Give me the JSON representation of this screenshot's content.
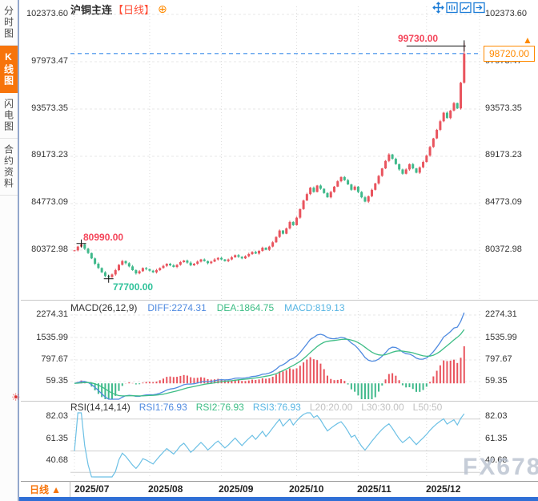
{
  "sidebar": {
    "tabs": [
      {
        "label": "分时图",
        "active": false
      },
      {
        "label": "K线图",
        "active": true
      },
      {
        "label": "闪电图",
        "active": false
      },
      {
        "label": "合约资料",
        "active": false
      }
    ]
  },
  "header": {
    "symbol": "沪铜主连",
    "period_tag": "【日线】",
    "expand_icon": "⊕",
    "toolbar_icons": [
      "crosshair-icon",
      "range-stats-icon",
      "trend-draw-icon",
      "page-forward-icon"
    ]
  },
  "colors": {
    "up": "#e9545e",
    "down": "#3fb98b",
    "diff_line": "#4f8ae0",
    "dea_line": "#3dbd85",
    "rsi_line": "#6cc0e5",
    "dashed_line": "#3b8cea",
    "accent_orange": "#f7740a",
    "annotation_red": "#f4455a",
    "annotation_green": "#2fc29a"
  },
  "main_chart": {
    "left_axis": [
      "102373.60",
      "97973.47",
      "93573.35",
      "89173.23",
      "84773.09",
      "80372.98"
    ],
    "right_axis": [
      "102373.60",
      "97973.47",
      "93573.35",
      "89173.23",
      "84773.09",
      "80372.98"
    ],
    "high_label": "99730.00",
    "july_high_label": "80990.00",
    "low_label": "77700.00",
    "current_price": "98720.00",
    "up_arrow": "▲"
  },
  "macd_panel": {
    "name": "MACD(26,12,9)",
    "diff": "DIFF:2274.31",
    "dea": "DEA:1864.75",
    "macd": "MACD:819.13",
    "left_axis": [
      "2274.31",
      "1535.99",
      "797.67",
      "59.35"
    ],
    "right_axis": [
      "2274.31",
      "1535.99",
      "797.67",
      "59.35"
    ]
  },
  "rsi_panel": {
    "name": "RSI(14,14,14)",
    "rsi1": "RSI1:76.93",
    "rsi2": "RSI2:76.93",
    "rsi3": "RSI3:76.93",
    "l20": "L20:20.00",
    "l30": "L30:30.00",
    "l50": "L50:50",
    "left_axis": [
      "82.03",
      "61.35",
      "40.68"
    ],
    "right_axis": [
      "82.03",
      "61.35",
      "40.68"
    ],
    "settings_icon": "☀"
  },
  "footer": {
    "period_label": "日线",
    "period_arrow": "▲",
    "x_labels": [
      "2025/07",
      "2025/08",
      "2025/09",
      "2025/10",
      "2025/11",
      "2025/12"
    ]
  },
  "watermark": "FX678",
  "chart_data": {
    "type": "candlestick",
    "title": "沪铜主连 日线",
    "x_categories_visible": [
      "2025/07",
      "2025/08",
      "2025/09",
      "2025/10",
      "2025/11",
      "2025/12"
    ],
    "month_start_indices": [
      0,
      22,
      43,
      65,
      83,
      103
    ],
    "y_ticks": [
      102373.6,
      97973.47,
      93573.35,
      89173.23,
      84773.09,
      80372.98
    ],
    "first_open": 80300,
    "closes": [
      80350,
      80700,
      80900,
      80500,
      80100,
      79600,
      79100,
      78700,
      78300,
      77950,
      77850,
      78100,
      78500,
      79000,
      79350,
      79150,
      78850,
      78500,
      78200,
      78400,
      78700,
      78600,
      78450,
      78300,
      78500,
      78700,
      78900,
      79100,
      78950,
      78800,
      79000,
      79250,
      79400,
      79200,
      78950,
      79100,
      79300,
      79500,
      79350,
      79150,
      79300,
      79500,
      79650,
      79500,
      79350,
      79500,
      79700,
      79900,
      79750,
      79600,
      79800,
      80000,
      80200,
      80050,
      80300,
      80600,
      80400,
      80700,
      81100,
      81600,
      82200,
      81900,
      82400,
      83000,
      82700,
      83400,
      84200,
      85000,
      85600,
      86200,
      85800,
      86400,
      86100,
      85700,
      85300,
      85800,
      86300,
      86800,
      87200,
      86900,
      86500,
      86000,
      86300,
      85800,
      85300,
      84900,
      85400,
      86000,
      86600,
      87300,
      88000,
      88700,
      89300,
      88900,
      88400,
      87900,
      87500,
      87900,
      88400,
      88000,
      87600,
      88100,
      88600,
      89200,
      90000,
      90800,
      91600,
      92400,
      93200,
      92700,
      93400,
      94100,
      93600,
      96000,
      98720
    ],
    "ohlc_note": "closes estimated from pixels; open = previous close; highs/lows estimated",
    "annotations": {
      "period_high": {
        "index": 114,
        "price": 99730.0
      },
      "period_low": {
        "index": 10,
        "price": 77700.0
      },
      "july_high": {
        "index": 2,
        "price": 80990.0
      },
      "last_price": 98720.0
    },
    "macd": {
      "params": [
        26,
        12,
        9
      ],
      "last_diff": 2274.31,
      "last_dea": 1864.75,
      "last_macd": 819.13,
      "y_ticks": [
        2274.31,
        1535.99,
        797.67,
        59.35
      ]
    },
    "rsi": {
      "params": [
        14,
        14,
        14
      ],
      "last_rsi1": 76.93,
      "last_rsi2": 76.93,
      "last_rsi3": 76.93,
      "levels": {
        "L20": 20.0,
        "L30": 30.0,
        "L50": 50
      },
      "y_ticks": [
        82.03,
        61.35,
        40.68
      ]
    }
  }
}
